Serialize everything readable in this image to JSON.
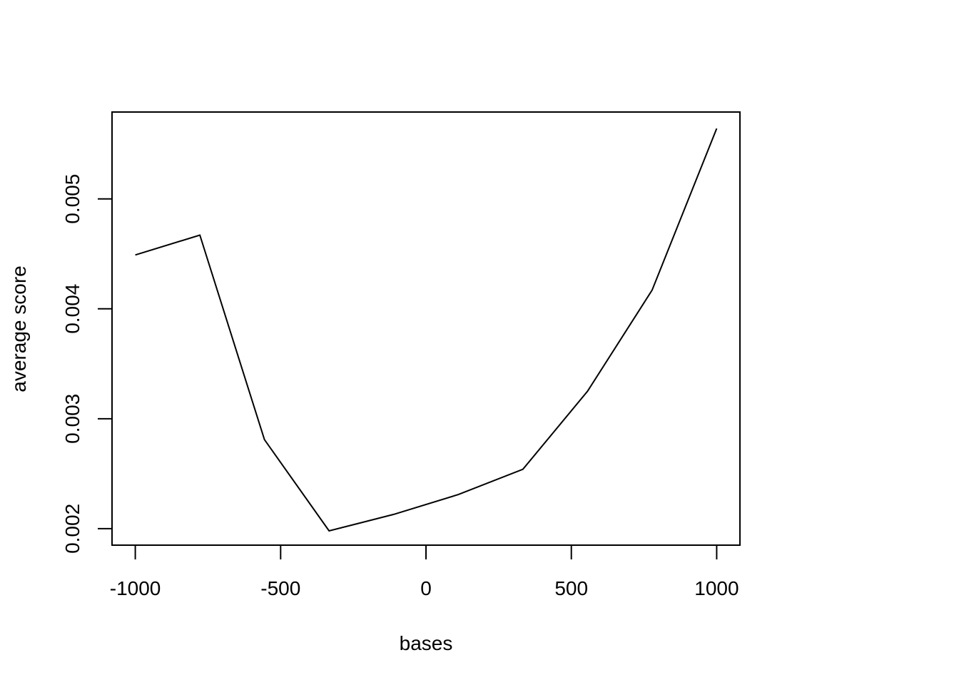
{
  "chart_data": {
    "type": "line",
    "title": "",
    "xlabel": "bases",
    "ylabel": "average score",
    "x": [
      -1000,
      -777.8,
      -555.6,
      -333.3,
      -111.1,
      111.1,
      333.3,
      555.6,
      777.8,
      1000
    ],
    "series": [
      {
        "values": [
          0.00449,
          0.00467,
          0.00281,
          0.00198,
          0.00213,
          0.00231,
          0.00254,
          0.00325,
          0.00417,
          0.00564
        ]
      }
    ],
    "xlim": [
      -1080,
      1080
    ],
    "ylim": [
      0.00185,
      0.00579
    ],
    "xticks": [
      -1000,
      -500,
      0,
      500,
      1000
    ],
    "xtick_labels": [
      "-1000",
      "-500",
      "0",
      "500",
      "1000"
    ],
    "yticks": [
      0.002,
      0.003,
      0.004,
      0.005
    ],
    "ytick_labels": [
      "0.002",
      "0.003",
      "0.004",
      "0.005"
    ],
    "grid": false,
    "legend": "none",
    "line_color": "#000000"
  }
}
